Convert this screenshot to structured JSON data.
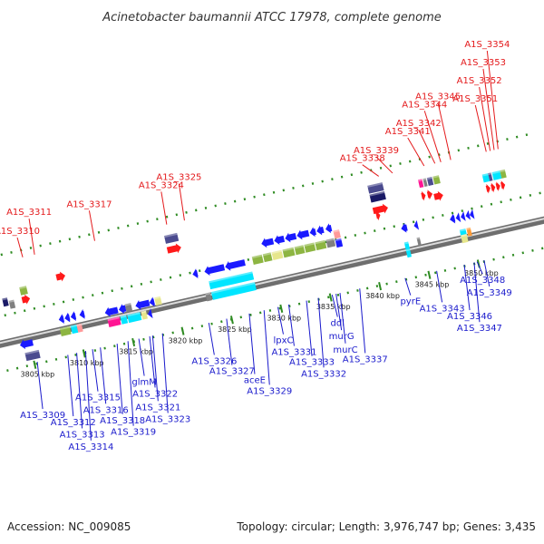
{
  "title": "Acinetobacter baumannii ATCC 17978, complete genome",
  "footer": {
    "accession": "Accession: NC_009085",
    "topology": "Topology: circular; Length: 3,976,747 bp; Genes: 3,435"
  },
  "colors": {
    "upper_label": "#e41a1c",
    "lower_label": "#1a1acc",
    "backbone": "#808080",
    "tick": "#2e8b22",
    "palette": [
      "#1a1aff",
      "#ff1a1a",
      "#00e5ff",
      "#8db542",
      "#4b4b8f",
      "#ff1493",
      "#e6e68c",
      "#ff9999",
      "#808080",
      "#1a1a66",
      "#ff9933"
    ]
  },
  "scale": {
    "start_kbp": 3803.2,
    "end_kbp": 3854.5,
    "ticks": [
      {
        "kbp": 3805,
        "label": "3805 kbp"
      },
      {
        "kbp": 3810,
        "label": "3810 kbp"
      },
      {
        "kbp": 3815,
        "label": "3815 kbp"
      },
      {
        "kbp": 3820,
        "label": "3820 kbp"
      },
      {
        "kbp": 3825,
        "label": "3825 kbp"
      },
      {
        "kbp": 3830,
        "label": "3830 kbp"
      },
      {
        "kbp": 3835,
        "label": "3835 kbp"
      },
      {
        "kbp": 3840,
        "label": "3840 kbp"
      },
      {
        "kbp": 3845,
        "label": "3845 kbp"
      },
      {
        "kbp": 3850,
        "label": "3850 kbp"
      }
    ]
  },
  "labels_upper": [
    {
      "text": "A1S_3310",
      "kbp": 3806.2
    },
    {
      "text": "A1S_3311",
      "kbp": 3807.4
    },
    {
      "text": "A1S_3317",
      "kbp": 3813.5
    },
    {
      "text": "A1S_3324",
      "kbp": 3820.8
    },
    {
      "text": "A1S_3325",
      "kbp": 3822.6
    },
    {
      "text": "A1S_3338",
      "kbp": 3842.3
    },
    {
      "text": "A1S_3339",
      "kbp": 3843.7
    },
    {
      "text": "A1S_3341",
      "kbp": 3846.9
    },
    {
      "text": "A1S_3342",
      "kbp": 3848.0
    },
    {
      "text": "A1S_3344",
      "kbp": 3848.6
    },
    {
      "text": "A1S_3345",
      "kbp": 3849.6
    },
    {
      "text": "A1S_3351",
      "kbp": 3853.2
    },
    {
      "text": "A1S_3352",
      "kbp": 3853.6
    },
    {
      "text": "A1S_3353",
      "kbp": 3854.0
    },
    {
      "text": "A1S_3354",
      "kbp": 3854.4
    }
  ],
  "labels_lower": [
    {
      "text": "A1S_3309",
      "kbp": 3805.3
    },
    {
      "text": "A1S_3312",
      "kbp": 3808.4
    },
    {
      "text": "A1S_3313",
      "kbp": 3809.3
    },
    {
      "text": "A1S_3314",
      "kbp": 3810.2
    },
    {
      "text": "A1S_3315",
      "kbp": 3810.9
    },
    {
      "text": "A1S_3316",
      "kbp": 3811.7
    },
    {
      "text": "A1S_3318",
      "kbp": 3813.4
    },
    {
      "text": "A1S_3319",
      "kbp": 3814.5
    },
    {
      "text": "glmM",
      "kbp": 3815.6
    },
    {
      "text": "A1S_3322",
      "kbp": 3816.7
    },
    {
      "text": "A1S_3321",
      "kbp": 3817.0
    },
    {
      "text": "A1S_3323",
      "kbp": 3818.0
    },
    {
      "text": "A1S_3326",
      "kbp": 3822.7
    },
    {
      "text": "A1S_3327",
      "kbp": 3824.5
    },
    {
      "text": "aceE",
      "kbp": 3826.8
    },
    {
      "text": "A1S_3329",
      "kbp": 3828.3
    },
    {
      "text": "lpxC",
      "kbp": 3829.7
    },
    {
      "text": "A1S_3331",
      "kbp": 3830.8
    },
    {
      "text": "A1S_3333",
      "kbp": 3832.6
    },
    {
      "text": "A1S_3332",
      "kbp": 3833.8
    },
    {
      "text": "ddl",
      "kbp": 3835.2
    },
    {
      "text": "murG",
      "kbp": 3835.6
    },
    {
      "text": "murC",
      "kbp": 3836.0
    },
    {
      "text": "A1S_3337",
      "kbp": 3838.0
    },
    {
      "text": "pyrE",
      "kbp": 3842.6
    },
    {
      "text": "A1S_3343",
      "kbp": 3845.8
    },
    {
      "text": "A1S_3346",
      "kbp": 3848.6
    },
    {
      "text": "A1S_3347",
      "kbp": 3849.6
    },
    {
      "text": "A1S_3348",
      "kbp": 3849.9
    },
    {
      "text": "A1S_3349",
      "kbp": 3850.6
    }
  ]
}
